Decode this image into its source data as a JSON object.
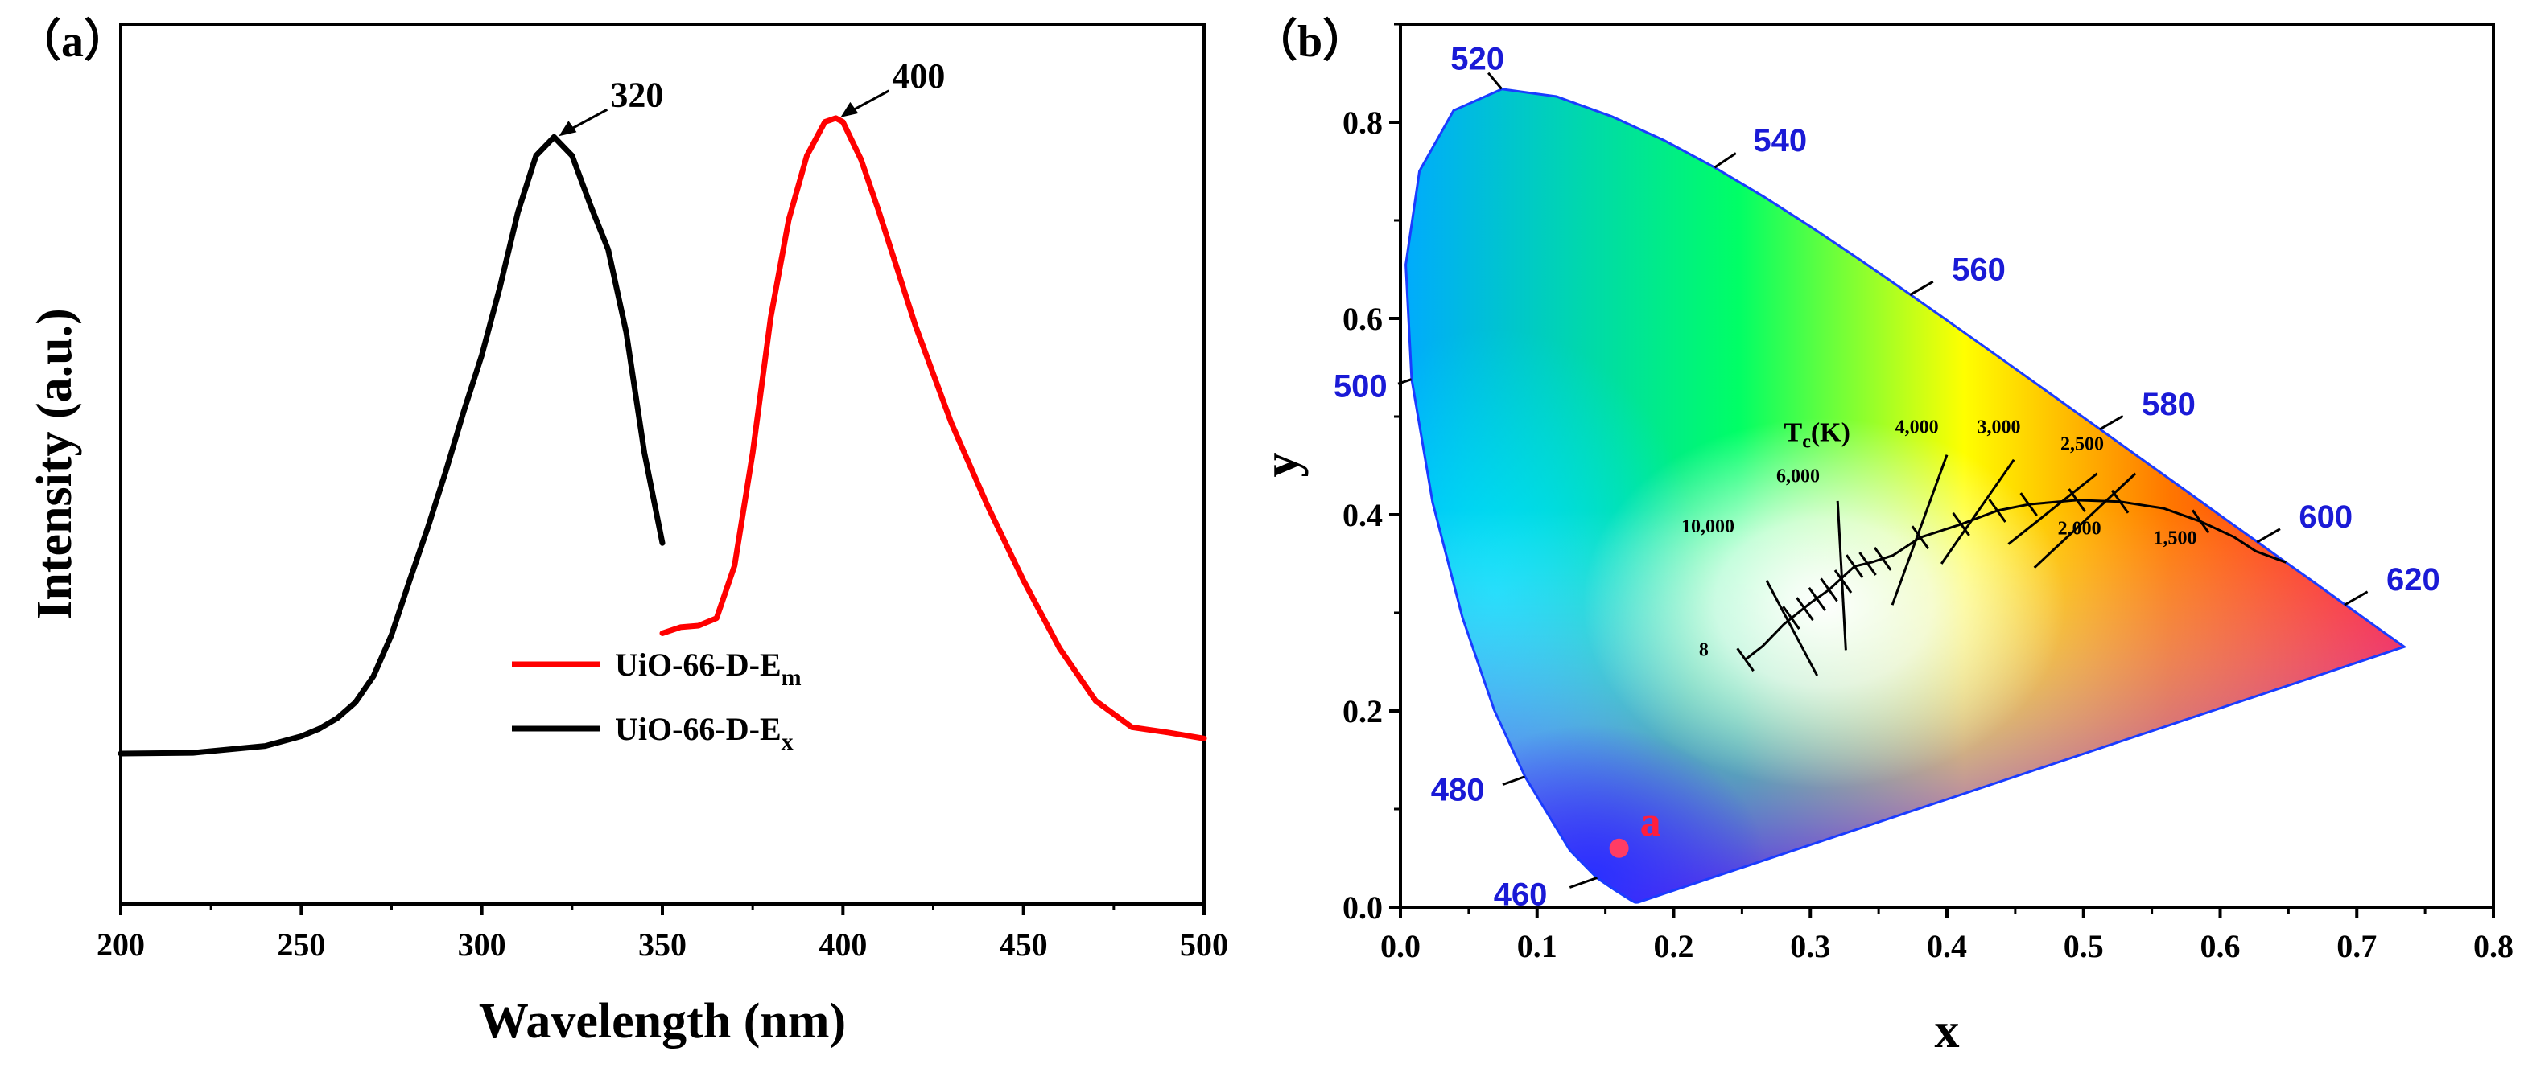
{
  "panels": {
    "a_label": "（a）",
    "b_label": "（b）"
  },
  "chart_data": [
    {
      "type": "line",
      "xlabel": "Wavelength (nm)",
      "ylabel": "Intensity (a.u.)",
      "xlim": [
        200,
        500
      ],
      "ylim": [
        0,
        1.17
      ],
      "xticks": [
        200,
        250,
        300,
        350,
        400,
        450,
        500
      ],
      "series": [
        {
          "name": "UiO-66-D-Ex",
          "legend_main": "UiO-66-D-E",
          "legend_sub": "x",
          "color": "#000000",
          "x": [
            200,
            220,
            240,
            250,
            255,
            260,
            265,
            270,
            275,
            280,
            285,
            290,
            295,
            300,
            305,
            310,
            315,
            320,
            325,
            330,
            335,
            340,
            345,
            350
          ],
          "y": [
            0.2,
            0.201,
            0.21,
            0.223,
            0.233,
            0.247,
            0.268,
            0.303,
            0.358,
            0.43,
            0.5,
            0.575,
            0.655,
            0.73,
            0.82,
            0.92,
            0.995,
            1.02,
            0.995,
            0.93,
            0.87,
            0.76,
            0.6,
            0.48
          ]
        },
        {
          "name": "UiO-66-D-Em",
          "legend_main": "UiO-66-D-E",
          "legend_sub": "m",
          "color": "#ff0000",
          "x": [
            350,
            355,
            360,
            365,
            370,
            375,
            380,
            385,
            390,
            395,
            398,
            400,
            405,
            410,
            420,
            430,
            440,
            450,
            460,
            470,
            480,
            490,
            500
          ],
          "y": [
            0.36,
            0.368,
            0.37,
            0.38,
            0.45,
            0.6,
            0.78,
            0.91,
            0.995,
            1.04,
            1.045,
            1.04,
            0.99,
            0.92,
            0.77,
            0.64,
            0.53,
            0.43,
            0.34,
            0.27,
            0.235,
            0.228,
            0.22
          ]
        }
      ],
      "annotations": [
        {
          "text": "320",
          "x": 320,
          "y": 1.02
        },
        {
          "text": "400",
          "x": 398,
          "y": 1.045
        }
      ]
    },
    {
      "type": "scatter",
      "subtype": "CIE 1931 chromaticity diagram",
      "xlabel": "x",
      "ylabel": "y",
      "xlim": [
        0.0,
        0.8
      ],
      "ylim": [
        0.0,
        0.9
      ],
      "xticks": [
        "0.0",
        "0.1",
        "0.2",
        "0.3",
        "0.4",
        "0.5",
        "0.6",
        "0.7",
        "0.8"
      ],
      "yticks": [
        "0.0",
        "0.2",
        "0.4",
        "0.6",
        "0.8"
      ],
      "spectral_locus_labels": [
        {
          "nm": "460",
          "x": 0.144,
          "y": 0.03
        },
        {
          "nm": "480",
          "x": 0.091,
          "y": 0.133
        },
        {
          "nm": "500",
          "x": 0.008,
          "y": 0.538
        },
        {
          "nm": "520",
          "x": 0.074,
          "y": 0.834
        },
        {
          "nm": "540",
          "x": 0.23,
          "y": 0.754
        },
        {
          "nm": "560",
          "x": 0.373,
          "y": 0.624
        },
        {
          "nm": "580",
          "x": 0.512,
          "y": 0.487
        },
        {
          "nm": "600",
          "x": 0.627,
          "y": 0.372
        },
        {
          "nm": "620",
          "x": 0.691,
          "y": 0.308
        }
      ],
      "planckian_locus_title": "T",
      "planckian_locus_title_sub": "c",
      "planckian_locus_title_tail": "(K)",
      "cct_labels": [
        "10,000",
        "6,000",
        "4,000",
        "3,000",
        "2,500",
        "2,000",
        "1,500",
        "8"
      ],
      "points": [
        {
          "label": "a",
          "x": 0.16,
          "y": 0.06,
          "color": "#ff3c64"
        }
      ]
    }
  ]
}
